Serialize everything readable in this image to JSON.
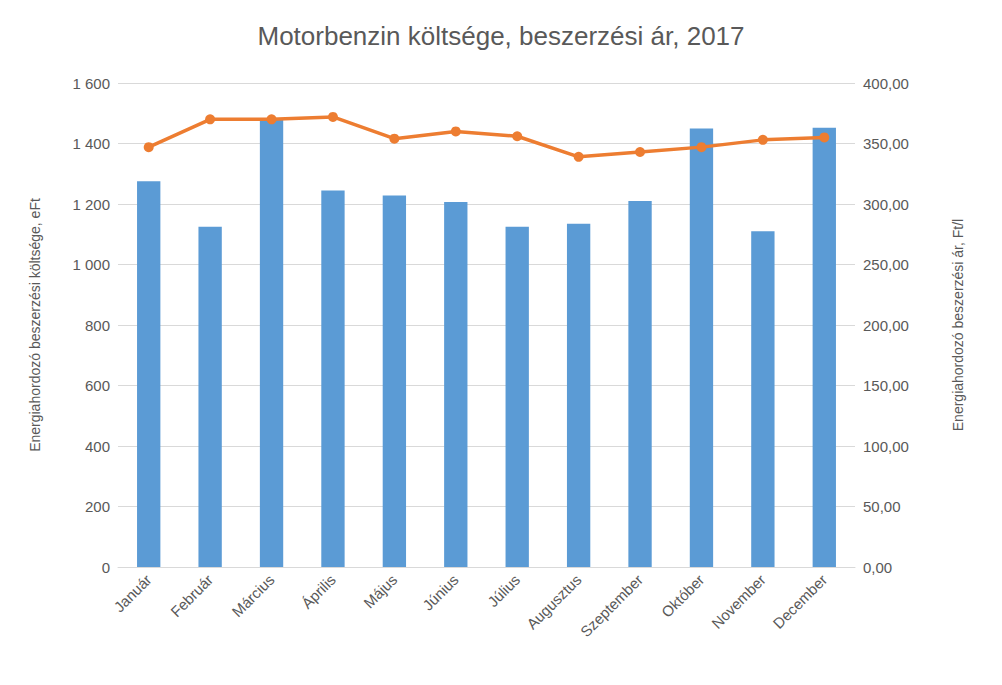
{
  "chart_data": {
    "type": "bar",
    "title": "Motorbenzin költsége, beszerzési ár, 2017",
    "y_label": "Energiahordozó beszerzési költsége, eFt",
    "y2_label": "Energiahordozó beszerzési ár, Ft/l",
    "categories": [
      "Január",
      "Február",
      "Március",
      "Április",
      "Május",
      "Június",
      "Július",
      "Augusztus",
      "Szeptember",
      "Október",
      "November",
      "December"
    ],
    "series": [
      {
        "type": "bar",
        "color": "#5b9bd5",
        "values": [
          1275,
          1125,
          1480,
          1245,
          1228,
          1207,
          1125,
          1135,
          1210,
          1450,
          1110,
          1452
        ]
      },
      {
        "type": "line",
        "axis": "y2",
        "color": "#ed7d31",
        "marker": "circle",
        "values": [
          347,
          370,
          370,
          372,
          354,
          360,
          356,
          339,
          343,
          347,
          353,
          355
        ]
      }
    ],
    "ylim": [
      0,
      1600
    ],
    "yticks": [
      0,
      200,
      400,
      600,
      800,
      {
        "value": 1000,
        "label": "1 000"
      },
      {
        "value": 1200,
        "label": "1 200"
      },
      {
        "value": 1400,
        "label": "1 400"
      },
      {
        "value": 1600,
        "label": "1 600"
      }
    ],
    "y2lim": [
      0,
      400
    ],
    "y2ticks": [
      {
        "value": 0,
        "label": "0,00"
      },
      {
        "value": 50,
        "label": "50,00"
      },
      {
        "value": 100,
        "label": "100,00"
      },
      {
        "value": 150,
        "label": "150,00"
      },
      {
        "value": 200,
        "label": "200,00"
      },
      {
        "value": 250,
        "label": "250,00"
      },
      {
        "value": 300,
        "label": "300,00"
      },
      {
        "value": 350,
        "label": "350,00"
      },
      {
        "value": 400,
        "label": "400,00"
      }
    ],
    "grid": true
  }
}
